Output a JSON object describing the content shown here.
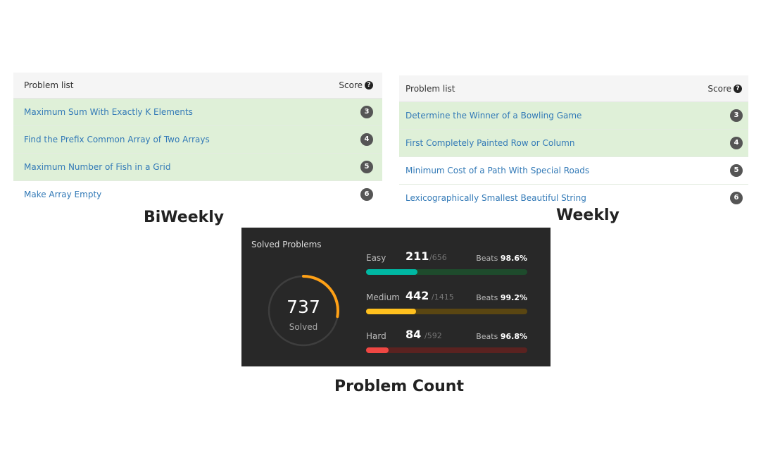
{
  "biweekly": {
    "header_label": "Problem list",
    "score_label": "Score",
    "rows": [
      {
        "title": "Maximum Sum With Exactly K Elements",
        "score": "3",
        "solved": true
      },
      {
        "title": "Find the Prefix Common Array of Two Arrays",
        "score": "4",
        "solved": true
      },
      {
        "title": "Maximum Number of Fish in a Grid",
        "score": "5",
        "solved": true
      },
      {
        "title": "Make Array Empty",
        "score": "6",
        "solved": false
      }
    ],
    "caption": "BiWeekly"
  },
  "weekly": {
    "header_label": "Problem list",
    "score_label": "Score",
    "rows": [
      {
        "title": "Determine the Winner of a Bowling Game",
        "score": "3",
        "solved": true
      },
      {
        "title": "First Completely Painted Row or Column",
        "score": "4",
        "solved": true
      },
      {
        "title": "Minimum Cost of a Path With Special Roads",
        "score": "5",
        "solved": false
      },
      {
        "title": "Lexicographically Smallest Beautiful String",
        "score": "6",
        "solved": false
      }
    ],
    "caption": "Weekly"
  },
  "stats": {
    "title": "Solved Problems",
    "total_solved": "737",
    "solved_label": "Solved",
    "ring_color": "#ffa116",
    "difficulties": [
      {
        "name": "Easy",
        "solved": "211",
        "total": "/656",
        "beats_label": "Beats",
        "beats_value": "98.6%",
        "fill_fraction": 0.32,
        "color": "#00b8a3",
        "track_color": "#1e4b2c"
      },
      {
        "name": "Medium",
        "solved": "442",
        "total": "/1415",
        "beats_label": "Beats",
        "beats_value": "99.2%",
        "fill_fraction": 0.31,
        "color": "#ffc01e",
        "track_color": "#5a4612"
      },
      {
        "name": "Hard",
        "solved": "84",
        "total": "/592",
        "beats_label": "Beats",
        "beats_value": "96.8%",
        "fill_fraction": 0.14,
        "color": "#ef4743",
        "track_color": "#5a2220"
      }
    ],
    "caption": "Problem Count"
  }
}
